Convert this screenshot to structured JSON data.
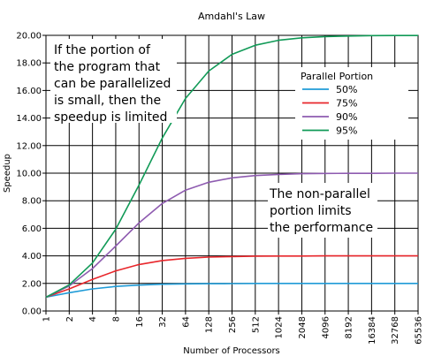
{
  "chart_data": {
    "type": "line",
    "title": "Amdahl's Law",
    "xlabel": "Number of Processors",
    "ylabel": "Speedup",
    "x_scale": "log2",
    "x": [
      1,
      2,
      4,
      8,
      16,
      32,
      64,
      128,
      256,
      512,
      1024,
      2048,
      4096,
      8192,
      16384,
      32768,
      65536
    ],
    "x_tick_labels": [
      "1",
      "2",
      "4",
      "8",
      "16",
      "32",
      "64",
      "128",
      "256",
      "512",
      "1024",
      "2048",
      "4096",
      "8192",
      "16384",
      "32768",
      "65536"
    ],
    "ylim": [
      0,
      20
    ],
    "y_ticks": [
      0,
      2,
      4,
      6,
      8,
      10,
      12,
      14,
      16,
      18,
      20
    ],
    "y_tick_labels": [
      "0.00",
      "2.00",
      "4.00",
      "6.00",
      "8.00",
      "10.00",
      "12.00",
      "14.00",
      "16.00",
      "18.00",
      "20.00"
    ],
    "grid": true,
    "legend": {
      "title": "Parallel Portion",
      "position": "top-right"
    },
    "series": [
      {
        "name": "50%",
        "color": "#1f9bd7",
        "values": [
          1.0,
          1.33,
          1.6,
          1.78,
          1.88,
          1.94,
          1.97,
          1.98,
          1.99,
          2.0,
          2.0,
          2.0,
          2.0,
          2.0,
          2.0,
          2.0,
          2.0
        ]
      },
      {
        "name": "75%",
        "color": "#e8262b",
        "values": [
          1.0,
          1.6,
          2.29,
          2.91,
          3.37,
          3.66,
          3.82,
          3.91,
          3.95,
          3.98,
          3.99,
          3.99,
          4.0,
          4.0,
          4.0,
          4.0,
          4.0
        ]
      },
      {
        "name": "90%",
        "color": "#8e5bb0",
        "values": [
          1.0,
          1.82,
          3.08,
          4.71,
          6.4,
          7.8,
          8.77,
          9.34,
          9.66,
          9.83,
          9.91,
          9.96,
          9.98,
          9.99,
          9.99,
          10.0,
          10.0
        ]
      },
      {
        "name": "95%",
        "color": "#119a57",
        "values": [
          1.0,
          1.9,
          3.48,
          5.93,
          9.14,
          12.55,
          15.42,
          17.41,
          18.62,
          19.28,
          19.64,
          19.82,
          19.91,
          19.95,
          19.98,
          19.99,
          19.99
        ]
      }
    ],
    "annotations": [
      {
        "lines": [
          "If the portion of",
          "the program that",
          "can be parallelized",
          "is small, then the",
          "speedup is limited"
        ]
      },
      {
        "lines": [
          "The non-parallel",
          "portion limits",
          "the performance"
        ]
      }
    ]
  }
}
